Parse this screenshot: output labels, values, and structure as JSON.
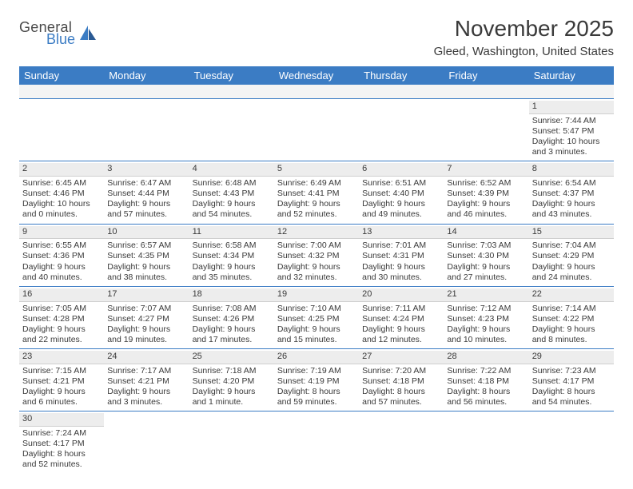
{
  "logo": {
    "general": "General",
    "blue": "Blue"
  },
  "title": "November 2025",
  "location": "Gleed, Washington, United States",
  "colors": {
    "header_bg": "#3b7cc4",
    "header_text": "#ffffff",
    "daynum_bg": "#ededed",
    "rule": "#3b7cc4",
    "text": "#3a3a3a"
  },
  "dow": [
    "Sunday",
    "Monday",
    "Tuesday",
    "Wednesday",
    "Thursday",
    "Friday",
    "Saturday"
  ],
  "weeks": [
    [
      null,
      null,
      null,
      null,
      null,
      null,
      {
        "n": "1",
        "sunrise": "7:44 AM",
        "sunset": "5:47 PM",
        "daylight": "10 hours and 3 minutes."
      }
    ],
    [
      {
        "n": "2",
        "sunrise": "6:45 AM",
        "sunset": "4:46 PM",
        "daylight": "10 hours and 0 minutes."
      },
      {
        "n": "3",
        "sunrise": "6:47 AM",
        "sunset": "4:44 PM",
        "daylight": "9 hours and 57 minutes."
      },
      {
        "n": "4",
        "sunrise": "6:48 AM",
        "sunset": "4:43 PM",
        "daylight": "9 hours and 54 minutes."
      },
      {
        "n": "5",
        "sunrise": "6:49 AM",
        "sunset": "4:41 PM",
        "daylight": "9 hours and 52 minutes."
      },
      {
        "n": "6",
        "sunrise": "6:51 AM",
        "sunset": "4:40 PM",
        "daylight": "9 hours and 49 minutes."
      },
      {
        "n": "7",
        "sunrise": "6:52 AM",
        "sunset": "4:39 PM",
        "daylight": "9 hours and 46 minutes."
      },
      {
        "n": "8",
        "sunrise": "6:54 AM",
        "sunset": "4:37 PM",
        "daylight": "9 hours and 43 minutes."
      }
    ],
    [
      {
        "n": "9",
        "sunrise": "6:55 AM",
        "sunset": "4:36 PM",
        "daylight": "9 hours and 40 minutes."
      },
      {
        "n": "10",
        "sunrise": "6:57 AM",
        "sunset": "4:35 PM",
        "daylight": "9 hours and 38 minutes."
      },
      {
        "n": "11",
        "sunrise": "6:58 AM",
        "sunset": "4:34 PM",
        "daylight": "9 hours and 35 minutes."
      },
      {
        "n": "12",
        "sunrise": "7:00 AM",
        "sunset": "4:32 PM",
        "daylight": "9 hours and 32 minutes."
      },
      {
        "n": "13",
        "sunrise": "7:01 AM",
        "sunset": "4:31 PM",
        "daylight": "9 hours and 30 minutes."
      },
      {
        "n": "14",
        "sunrise": "7:03 AM",
        "sunset": "4:30 PM",
        "daylight": "9 hours and 27 minutes."
      },
      {
        "n": "15",
        "sunrise": "7:04 AM",
        "sunset": "4:29 PM",
        "daylight": "9 hours and 24 minutes."
      }
    ],
    [
      {
        "n": "16",
        "sunrise": "7:05 AM",
        "sunset": "4:28 PM",
        "daylight": "9 hours and 22 minutes."
      },
      {
        "n": "17",
        "sunrise": "7:07 AM",
        "sunset": "4:27 PM",
        "daylight": "9 hours and 19 minutes."
      },
      {
        "n": "18",
        "sunrise": "7:08 AM",
        "sunset": "4:26 PM",
        "daylight": "9 hours and 17 minutes."
      },
      {
        "n": "19",
        "sunrise": "7:10 AM",
        "sunset": "4:25 PM",
        "daylight": "9 hours and 15 minutes."
      },
      {
        "n": "20",
        "sunrise": "7:11 AM",
        "sunset": "4:24 PM",
        "daylight": "9 hours and 12 minutes."
      },
      {
        "n": "21",
        "sunrise": "7:12 AM",
        "sunset": "4:23 PM",
        "daylight": "9 hours and 10 minutes."
      },
      {
        "n": "22",
        "sunrise": "7:14 AM",
        "sunset": "4:22 PM",
        "daylight": "9 hours and 8 minutes."
      }
    ],
    [
      {
        "n": "23",
        "sunrise": "7:15 AM",
        "sunset": "4:21 PM",
        "daylight": "9 hours and 6 minutes."
      },
      {
        "n": "24",
        "sunrise": "7:17 AM",
        "sunset": "4:21 PM",
        "daylight": "9 hours and 3 minutes."
      },
      {
        "n": "25",
        "sunrise": "7:18 AM",
        "sunset": "4:20 PM",
        "daylight": "9 hours and 1 minute."
      },
      {
        "n": "26",
        "sunrise": "7:19 AM",
        "sunset": "4:19 PM",
        "daylight": "8 hours and 59 minutes."
      },
      {
        "n": "27",
        "sunrise": "7:20 AM",
        "sunset": "4:18 PM",
        "daylight": "8 hours and 57 minutes."
      },
      {
        "n": "28",
        "sunrise": "7:22 AM",
        "sunset": "4:18 PM",
        "daylight": "8 hours and 56 minutes."
      },
      {
        "n": "29",
        "sunrise": "7:23 AM",
        "sunset": "4:17 PM",
        "daylight": "8 hours and 54 minutes."
      }
    ],
    [
      {
        "n": "30",
        "sunrise": "7:24 AM",
        "sunset": "4:17 PM",
        "daylight": "8 hours and 52 minutes."
      },
      null,
      null,
      null,
      null,
      null,
      null
    ]
  ]
}
